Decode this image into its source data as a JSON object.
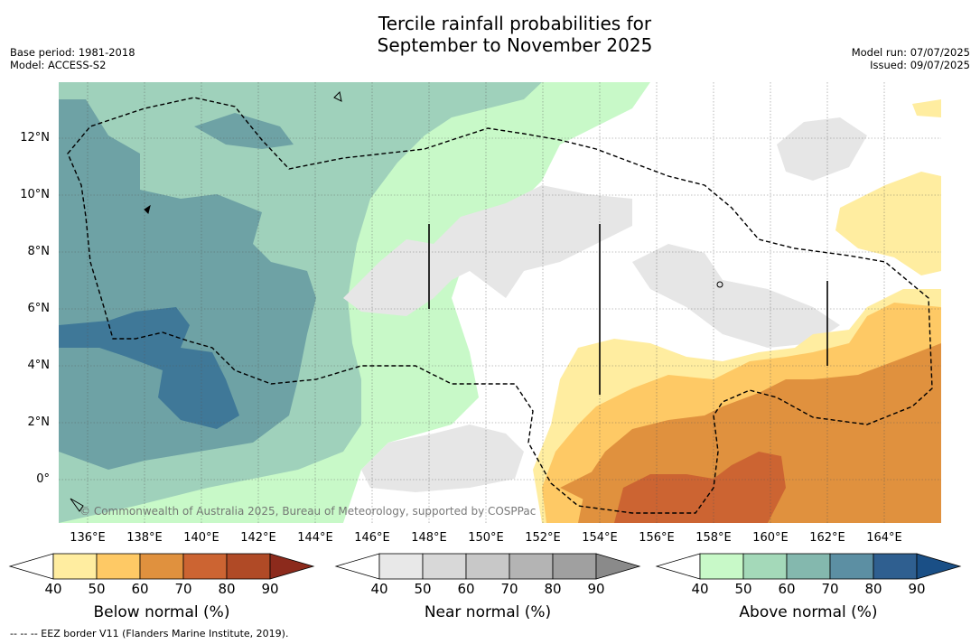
{
  "title_line1": "Tercile rainfall probabilities for",
  "title_line2": "September to November 2025",
  "meta_left": [
    "Base period: 1981-2018",
    "Model: ACCESS-S2"
  ],
  "meta_right": [
    "Model run: 07/07/2025",
    "Issued: 09/07/2025"
  ],
  "lat_labels": [
    "12°N",
    "10°N",
    "8°N",
    "6°N",
    "4°N",
    "2°N",
    "0°"
  ],
  "lon_labels": [
    "136°E",
    "138°E",
    "140°E",
    "142°E",
    "144°E",
    "146°E",
    "148°E",
    "150°E",
    "152°E",
    "154°E",
    "156°E",
    "158°E",
    "160°E",
    "162°E",
    "164°E"
  ],
  "credit": "© Commonwealth of Australia 2025, Bureau of Meteorology, supported by COSPPac",
  "footnote": "--  --  -- EEZ border V11 (Flanders Marine Institute, 2019).",
  "legends": [
    {
      "title": "Below normal (%)",
      "ticks": [
        "40",
        "50",
        "60",
        "70",
        "80",
        "90"
      ],
      "colors": [
        "#ffeda0",
        "#fec965",
        "#e0913e",
        "#cc6432",
        "#b04a26",
        "#8c2a1c"
      ]
    },
    {
      "title": "Near normal (%)",
      "ticks": [
        "40",
        "50",
        "60",
        "70",
        "80",
        "90"
      ],
      "colors": [
        "#e8e8e8",
        "#d8d8d8",
        "#c8c8c8",
        "#b4b4b4",
        "#a0a0a0",
        "#8a8a8a"
      ]
    },
    {
      "title": "Above normal (%)",
      "ticks": [
        "40",
        "50",
        "60",
        "70",
        "80",
        "90"
      ],
      "colors": [
        "#c8f9c8",
        "#a4d9b9",
        "#84b8ae",
        "#5c8fa3",
        "#2f5f90",
        "#1a4f86"
      ]
    }
  ],
  "colors": {
    "above_50": "#9fd1bb",
    "above_60": "#6ea2a5",
    "above_70": "#3f7898",
    "above_40": "#c8f9c8",
    "near_40": "#e6e6e6",
    "below_40": "#ffeda0",
    "below_50": "#fec965",
    "below_60": "#e0913e",
    "below_70": "#cc6432"
  }
}
